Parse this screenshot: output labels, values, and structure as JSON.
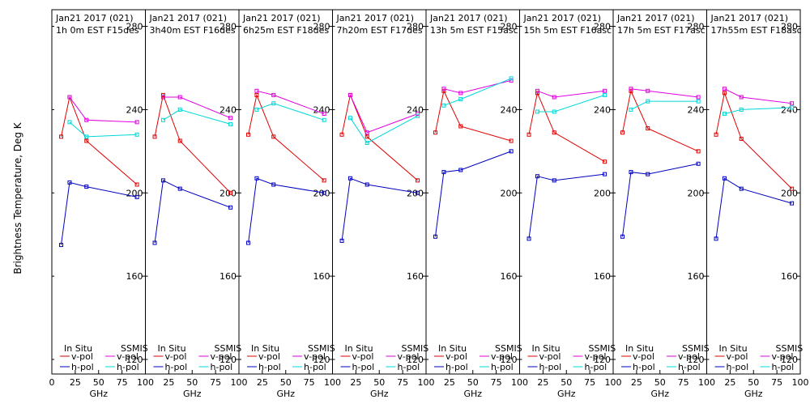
{
  "ylabel": "Brightness Temperature, Deg K",
  "xlabel": "GHz",
  "legend": {
    "in_situ_title": "In Situ",
    "ssmis_title": "SSMIS",
    "v_pol": "v-pol",
    "h_pol": "h-pol"
  },
  "colors": {
    "insitu_v": "#e00000",
    "insitu_h": "#0000c0",
    "ssmis_v": "#e000e0",
    "ssmis_h": "#00d8d8"
  },
  "chart_data": {
    "type": "line",
    "x_ticks": [
      "0",
      "25",
      "50",
      "75",
      "100"
    ],
    "x_range": [
      0,
      100
    ],
    "y_ticks": [
      "120",
      "160",
      "200",
      "240",
      "280"
    ],
    "y_range": [
      113,
      288
    ],
    "panels": [
      {
        "title1": "Jan21 2017 (021)",
        "title2": "1h 0m EST F15des",
        "insitu_v": [
          [
            10,
            227
          ],
          [
            19,
            246
          ],
          [
            37,
            225
          ],
          [
            91,
            204
          ]
        ],
        "insitu_h": [
          [
            10,
            175
          ],
          [
            19,
            205
          ],
          [
            37,
            203
          ],
          [
            91,
            198
          ]
        ],
        "ssmis_v": [
          [
            19,
            246
          ],
          [
            37,
            235
          ],
          [
            91,
            234
          ]
        ],
        "ssmis_h": [
          [
            19,
            234
          ],
          [
            37,
            227
          ],
          [
            91,
            228
          ]
        ]
      },
      {
        "title1": "Jan21 2017 (021)",
        "title2": "3h40m EST F16des",
        "insitu_v": [
          [
            10,
            227
          ],
          [
            19,
            247
          ],
          [
            37,
            225
          ],
          [
            91,
            200
          ]
        ],
        "insitu_h": [
          [
            10,
            176
          ],
          [
            19,
            206
          ],
          [
            37,
            202
          ],
          [
            91,
            193
          ]
        ],
        "ssmis_v": [
          [
            19,
            246
          ],
          [
            37,
            246
          ],
          [
            91,
            236
          ]
        ],
        "ssmis_h": [
          [
            19,
            235
          ],
          [
            37,
            240
          ],
          [
            91,
            233
          ]
        ]
      },
      {
        "title1": "Jan21 2017 (021)",
        "title2": "6h25m EST F18des",
        "insitu_v": [
          [
            10,
            228
          ],
          [
            19,
            247
          ],
          [
            37,
            227
          ],
          [
            91,
            206
          ]
        ],
        "insitu_h": [
          [
            10,
            176
          ],
          [
            19,
            207
          ],
          [
            37,
            204
          ],
          [
            91,
            200
          ]
        ],
        "ssmis_v": [
          [
            19,
            249
          ],
          [
            37,
            247
          ],
          [
            91,
            238
          ]
        ],
        "ssmis_h": [
          [
            19,
            240
          ],
          [
            37,
            243
          ],
          [
            91,
            235
          ]
        ]
      },
      {
        "title1": "Jan21 2017 (021)",
        "title2": "7h20m EST F17des",
        "insitu_v": [
          [
            10,
            228
          ],
          [
            19,
            247
          ],
          [
            37,
            227
          ],
          [
            91,
            206
          ]
        ],
        "insitu_h": [
          [
            10,
            177
          ],
          [
            19,
            207
          ],
          [
            37,
            204
          ],
          [
            91,
            200
          ]
        ],
        "ssmis_v": [
          [
            19,
            247
          ],
          [
            37,
            229
          ],
          [
            91,
            238
          ]
        ],
        "ssmis_h": [
          [
            19,
            236
          ],
          [
            37,
            224
          ],
          [
            91,
            237
          ]
        ]
      },
      {
        "title1": "Jan21 2017 (021)",
        "title2": "13h 5m EST F15asc",
        "insitu_v": [
          [
            10,
            229
          ],
          [
            19,
            249
          ],
          [
            37,
            232
          ],
          [
            91,
            225
          ]
        ],
        "insitu_h": [
          [
            10,
            179
          ],
          [
            19,
            210
          ],
          [
            37,
            211
          ],
          [
            91,
            220
          ]
        ],
        "ssmis_v": [
          [
            19,
            250
          ],
          [
            37,
            248
          ],
          [
            91,
            254
          ]
        ],
        "ssmis_h": [
          [
            19,
            242
          ],
          [
            37,
            245
          ],
          [
            91,
            255
          ]
        ]
      },
      {
        "title1": "Jan21 2017 (021)",
        "title2": "15h 5m EST F16asc",
        "insitu_v": [
          [
            10,
            228
          ],
          [
            19,
            248
          ],
          [
            37,
            229
          ],
          [
            91,
            215
          ]
        ],
        "insitu_h": [
          [
            10,
            178
          ],
          [
            19,
            208
          ],
          [
            37,
            206
          ],
          [
            91,
            209
          ]
        ],
        "ssmis_v": [
          [
            19,
            249
          ],
          [
            37,
            246
          ],
          [
            91,
            249
          ]
        ],
        "ssmis_h": [
          [
            19,
            239
          ],
          [
            37,
            239
          ],
          [
            91,
            247
          ]
        ]
      },
      {
        "title1": "Jan21 2017 (021)",
        "title2": "17h 5m EST F17asc",
        "insitu_v": [
          [
            10,
            229
          ],
          [
            19,
            249
          ],
          [
            37,
            231
          ],
          [
            91,
            220
          ]
        ],
        "insitu_h": [
          [
            10,
            179
          ],
          [
            19,
            210
          ],
          [
            37,
            209
          ],
          [
            91,
            214
          ]
        ],
        "ssmis_v": [
          [
            19,
            250
          ],
          [
            37,
            249
          ],
          [
            91,
            246
          ]
        ],
        "ssmis_h": [
          [
            19,
            240
          ],
          [
            37,
            244
          ],
          [
            91,
            244
          ]
        ],
        "insitu_v_extra": []
      },
      {
        "title1": "Jan21 2017 (021)",
        "title2": "17h55m EST F18asc",
        "insitu_v": [
          [
            10,
            228
          ],
          [
            19,
            248
          ],
          [
            37,
            226
          ],
          [
            91,
            202
          ]
        ],
        "insitu_h": [
          [
            10,
            178
          ],
          [
            19,
            207
          ],
          [
            37,
            202
          ],
          [
            91,
            195
          ]
        ],
        "ssmis_v": [
          [
            19,
            250
          ],
          [
            37,
            246
          ],
          [
            91,
            243
          ]
        ],
        "ssmis_h": [
          [
            19,
            238
          ],
          [
            37,
            240
          ],
          [
            91,
            241
          ]
        ]
      }
    ]
  }
}
